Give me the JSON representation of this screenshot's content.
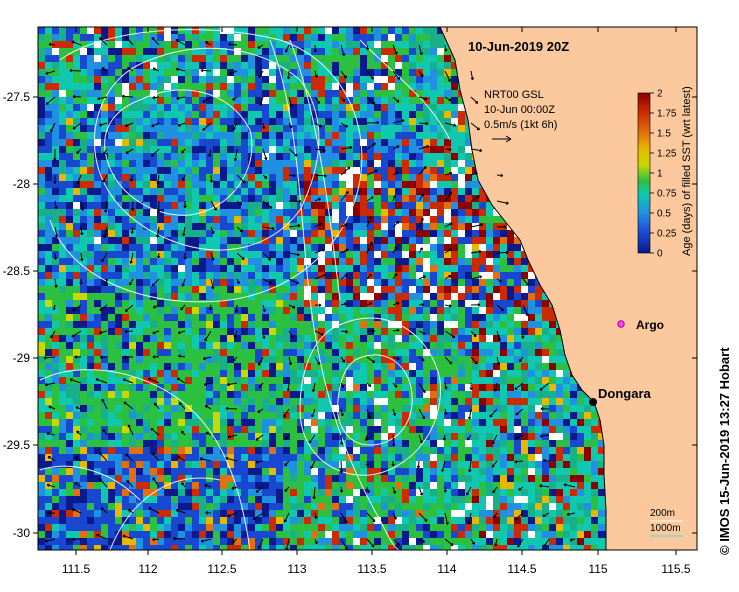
{
  "title": "10-Jun-2019 20Z",
  "legend": {
    "product": "NRT00 GSL",
    "time": "10-Jun 00:00Z",
    "vector_scale": "0.5m/s (1kt 6h)"
  },
  "colorbar": {
    "label": "Age (days) of filled SST (wrt latest)",
    "ticks": [
      "2",
      "1.75",
      "1.5",
      "1.25",
      "1",
      "0.75",
      "0.5",
      "0.25",
      "0"
    ],
    "colors": [
      "#8b0000",
      "#cc2a00",
      "#e07010",
      "#e8b800",
      "#c8d800",
      "#2cc040",
      "#18b088",
      "#10c8b0",
      "#2090e0",
      "#1848d0",
      "#0a1a8c"
    ]
  },
  "axes": {
    "x_ticks": [
      "111.5",
      "112",
      "112.5",
      "113",
      "113.5",
      "114",
      "114.5",
      "115",
      "115.5"
    ],
    "y_ticks": [
      "-27.5",
      "-28",
      "-28.5",
      "-29",
      "-29.5",
      "-30"
    ]
  },
  "places": {
    "argo": "Argo",
    "dongara": "Dongara"
  },
  "isobaths": {
    "a": "200m",
    "b": "1000m"
  },
  "credit": "© IMOS 15-Jun-2019 13:27 Hobart",
  "land_color": "#fbc99d"
}
